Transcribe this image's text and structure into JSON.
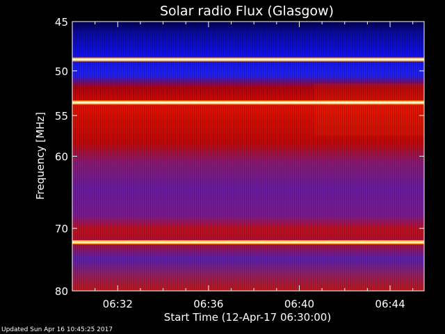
{
  "chart_data": {
    "type": "heatmap",
    "title": "Solar radio Flux (Glasgow)",
    "xlabel": "Start Time (12-Apr-17 06:30:00)",
    "ylabel": "Frequency [MHz]",
    "x_ticks": [
      "06:32",
      "06:36",
      "06:40",
      "06:44"
    ],
    "x_range_minutes": [
      0,
      15.5
    ],
    "x_tick_minutes": [
      2,
      6,
      10,
      14
    ],
    "y_ticks": [
      45,
      50,
      55,
      60,
      70,
      80
    ],
    "ylim": [
      45,
      80
    ],
    "y_scale": "log",
    "bright_bands_mhz": [
      48.8,
      53.5,
      72.1
    ],
    "colormap": [
      "#000000",
      "#0000b0",
      "#1a1af0",
      "#7a1a8a",
      "#c00000",
      "#ff2a00",
      "#ffd080",
      "#ffffff"
    ]
  },
  "footer": {
    "updated": "Updated Sun Apr 16 10:45:25 2017"
  }
}
